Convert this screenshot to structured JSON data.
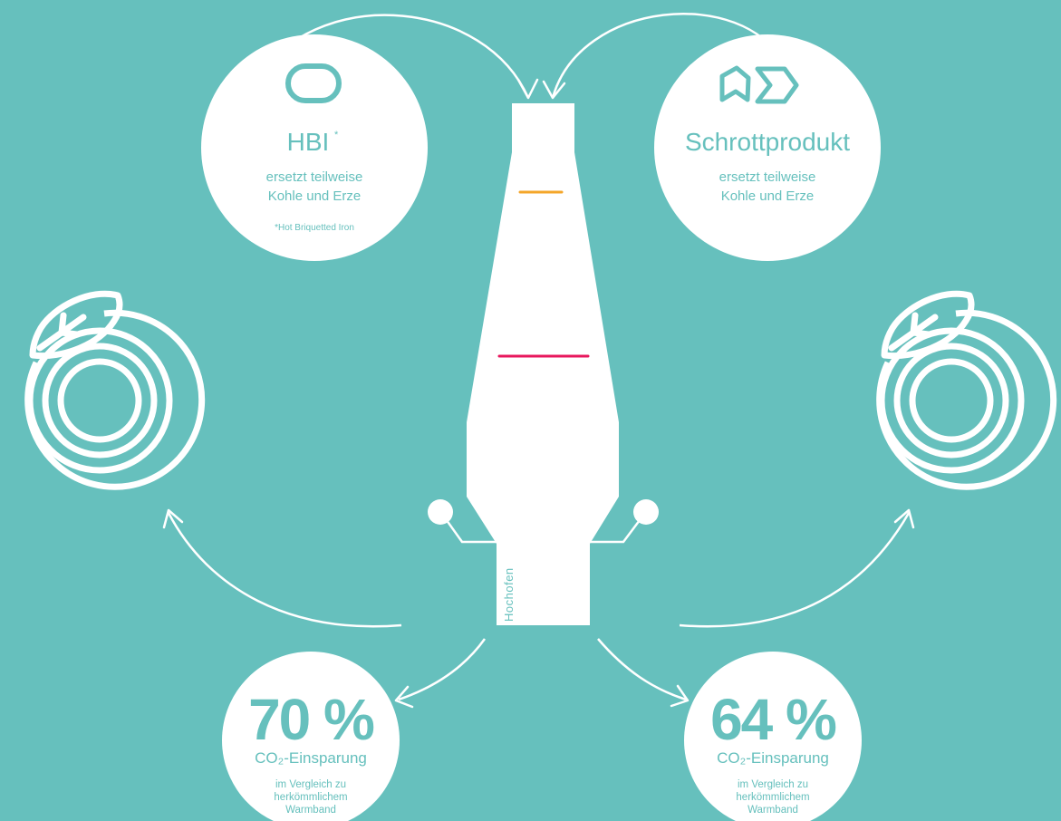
{
  "colors": {
    "background": "#66c0bd",
    "teal": "#66c0bd",
    "white": "#ffffff",
    "heat_orange": "#f4a62a",
    "heat_red": "#e8175d"
  },
  "hbi": {
    "icon": "rounded-briquette-icon",
    "title": "HBI",
    "footnote_mark": "*",
    "line1": "ersetzt teilweise",
    "line2": "Kohle und Erze",
    "footnote": "*Hot Briquetted Iron"
  },
  "scrap": {
    "icon": "scrap-shapes-icon",
    "title": "Schrottprodukt",
    "line1": "ersetzt teilweise",
    "line2": "Kohle und Erze"
  },
  "furnace": {
    "label": "Hochofen"
  },
  "coil_left": {
    "icon": "leaf-coil-icon"
  },
  "coil_right": {
    "icon": "leaf-coil-icon"
  },
  "saving_left": {
    "percent": "70 %",
    "co2": "CO₂-Einsparung",
    "line1": "im Vergleich zu",
    "line2": "herkömmlichem",
    "line3": "Warmband"
  },
  "saving_right": {
    "percent": "64 %",
    "co2": "CO₂-Einsparung",
    "line1": "im Vergleich zu",
    "line2": "herkömmlichem",
    "line3": "Warmband"
  }
}
